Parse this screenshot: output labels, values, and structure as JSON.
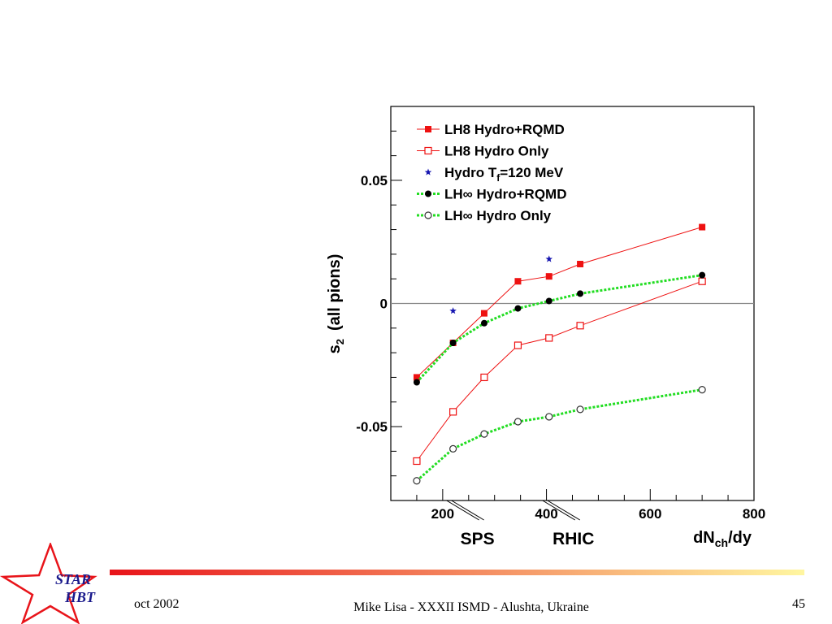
{
  "chart_data": {
    "type": "line",
    "ylabel_main": "s",
    "ylabel_sub": "2",
    "ylabel_rest": "(all pions)",
    "xlabel_main": "dN",
    "xlabel_sub": "ch",
    "xlabel_rest": "/dy",
    "xlim": [
      100,
      800
    ],
    "ylim": [
      -0.08,
      0.08
    ],
    "x_ticks": [
      200,
      400,
      600,
      800
    ],
    "x_tick_labels": [
      "200",
      "400",
      "600",
      "800"
    ],
    "y_ticks": [
      -0.05,
      0,
      0.05
    ],
    "y_tick_labels": [
      "-0.05",
      "0",
      "0.05"
    ],
    "reference_line_y": 0,
    "legend_position": "top-left",
    "series": [
      {
        "name": "LH8 Hydro+RQMD",
        "color": "#ee1111",
        "marker": "square-filled",
        "line": "solid",
        "x": [
          150,
          220,
          280,
          345,
          405,
          465,
          700
        ],
        "y": [
          -0.03,
          -0.016,
          -0.004,
          0.009,
          0.011,
          0.016,
          0.031
        ]
      },
      {
        "name": "LH8 Hydro Only",
        "color": "#ee1111",
        "marker": "square-open",
        "line": "solid",
        "x": [
          150,
          220,
          280,
          345,
          405,
          465,
          700
        ],
        "y": [
          -0.064,
          -0.044,
          -0.03,
          -0.017,
          -0.014,
          -0.009,
          0.009
        ]
      },
      {
        "name_main": "Hydro T",
        "name_sub": "f",
        "name_rest": "=120 MeV",
        "color": "#1515b0",
        "marker": "star",
        "line": "none",
        "x": [
          220,
          405
        ],
        "y": [
          -0.003,
          0.018
        ]
      },
      {
        "name": "LH∞ Hydro+RQMD",
        "color": "#000000",
        "line_color": "#22dd22",
        "marker": "circle-filled",
        "line": "dotted",
        "x": [
          150,
          220,
          280,
          345,
          405,
          465,
          700
        ],
        "y": [
          -0.032,
          -0.016,
          -0.008,
          -0.002,
          0.001,
          0.004,
          0.0115
        ]
      },
      {
        "name": "LH∞ Hydro Only",
        "color": "#333333",
        "line_color": "#22dd22",
        "marker": "circle-open",
        "line": "dotted",
        "x": [
          150,
          220,
          280,
          345,
          405,
          465,
          700
        ],
        "y": [
          -0.072,
          -0.059,
          -0.053,
          -0.048,
          -0.046,
          -0.043,
          -0.035
        ]
      }
    ],
    "annotations": [
      {
        "text": "SPS",
        "x": 220
      },
      {
        "text": "RHIC",
        "x": 405
      }
    ]
  },
  "footer": {
    "date": "oct 2002",
    "title": "Mike Lisa - XXXII ISMD - Alushta, Ukraine",
    "page": "45"
  },
  "logo": {
    "line1": "STAR",
    "line2": "HBT",
    "star_color": "#e8141a",
    "text_color": "#1a1a8c"
  },
  "colors": {
    "divider_start": "#e8141a",
    "divider_end": "#fff6a0"
  }
}
